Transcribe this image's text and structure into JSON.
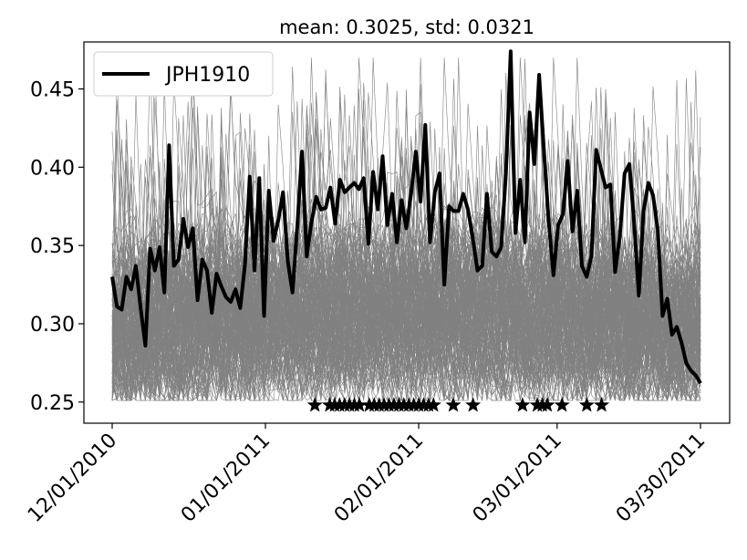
{
  "chart_data": {
    "type": "line",
    "title": "mean: 0.3025, std: 0.0321",
    "xlabel": "",
    "ylabel": "",
    "x_start": "12/01/2010",
    "x_end": "03/30/2011",
    "xlim": [
      "12/01/2010",
      "03/30/2011"
    ],
    "ylim": [
      0.2365,
      0.48
    ],
    "x_ticks": [
      {
        "date": "12/01/2010",
        "label": "12/01/2010"
      },
      {
        "date": "01/01/2011",
        "label": "01/01/2011"
      },
      {
        "date": "02/01/2011",
        "label": "02/01/2011"
      },
      {
        "date": "03/01/2011",
        "label": "03/01/2011"
      },
      {
        "date": "03/30/2011",
        "label": "03/30/2011"
      }
    ],
    "y_ticks": [
      {
        "value": 0.25,
        "label": "0.25"
      },
      {
        "value": 0.3,
        "label": "0.30"
      },
      {
        "value": 0.35,
        "label": "0.35"
      },
      {
        "value": 0.4,
        "label": "0.40"
      },
      {
        "value": 0.45,
        "label": "0.45"
      }
    ],
    "grid": false,
    "legend_position": "top-left",
    "highlight_series": {
      "name": "JPH1910",
      "color": "#000000",
      "values": [
        0.33,
        0.311,
        0.309,
        0.33,
        0.322,
        0.337,
        0.31,
        0.286,
        0.348,
        0.334,
        0.349,
        0.32,
        0.414,
        0.337,
        0.341,
        0.367,
        0.349,
        0.361,
        0.315,
        0.341,
        0.334,
        0.307,
        0.332,
        0.324,
        0.317,
        0.314,
        0.322,
        0.31,
        0.338,
        0.394,
        0.334,
        0.393,
        0.305,
        0.385,
        0.353,
        0.366,
        0.384,
        0.34,
        0.32,
        0.362,
        0.41,
        0.343,
        0.365,
        0.381,
        0.373,
        0.374,
        0.387,
        0.364,
        0.392,
        0.384,
        0.387,
        0.39,
        0.386,
        0.393,
        0.351,
        0.397,
        0.373,
        0.407,
        0.363,
        0.383,
        0.352,
        0.379,
        0.361,
        0.383,
        0.41,
        0.378,
        0.427,
        0.352,
        0.384,
        0.396,
        0.325,
        0.375,
        0.372,
        0.372,
        0.383,
        0.373,
        0.355,
        0.334,
        0.337,
        0.383,
        0.346,
        0.343,
        0.349,
        0.396,
        0.474,
        0.358,
        0.392,
        0.352,
        0.435,
        0.402,
        0.459,
        0.411,
        0.366,
        0.331,
        0.363,
        0.37,
        0.404,
        0.359,
        0.385,
        0.337,
        0.33,
        0.343,
        0.411,
        0.399,
        0.387,
        0.389,
        0.333,
        0.356,
        0.396,
        0.402,
        0.365,
        0.318,
        0.372,
        0.39,
        0.382,
        0.36,
        0.305,
        0.316,
        0.293,
        0.298,
        0.288,
        0.275,
        0.27,
        0.267,
        0.262
      ]
    },
    "background_series": {
      "count": 160,
      "color": "#808080",
      "note": ""
    },
    "markers": {
      "shape": "star",
      "y": 0.248,
      "dates": [
        "01/11/2011",
        "01/14/2011",
        "01/15/2011",
        "01/16/2011",
        "01/17/2011",
        "01/18/2011",
        "01/19/2011",
        "01/20/2011",
        "01/22/2011",
        "01/23/2011",
        "01/24/2011",
        "01/25/2011",
        "01/26/2011",
        "01/27/2011",
        "01/28/2011",
        "01/29/2011",
        "01/30/2011",
        "01/31/2011",
        "02/01/2011",
        "02/02/2011",
        "02/03/2011",
        "02/04/2011",
        "02/08/2011",
        "02/12/2011",
        "02/22/2011",
        "02/25/2011",
        "02/26/2011",
        "02/27/2011",
        "03/02/2011",
        "03/07/2011",
        "03/10/2011"
      ]
    }
  }
}
